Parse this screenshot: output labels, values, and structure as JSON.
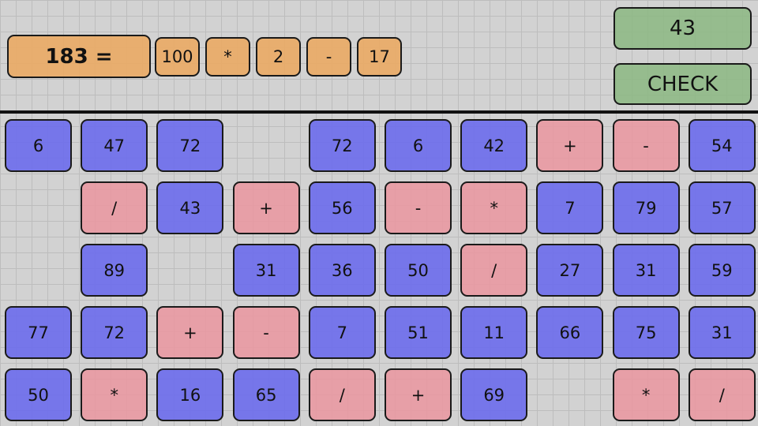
{
  "equation": {
    "target_label": "183 =",
    "tokens": [
      "100",
      "*",
      "2",
      "-",
      "17"
    ]
  },
  "result_value": "43",
  "check_label": "CHECK",
  "colors": {
    "number_tile": "#7878e6",
    "operator_tile": "#e3a0aa",
    "equation_tile": "#e6b078",
    "result_tile": "#93b98c"
  },
  "grid": [
    [
      "6",
      "47",
      "72",
      "",
      "72",
      "6",
      "42",
      "+",
      "-",
      "54"
    ],
    [
      "",
      "/",
      "43",
      "+",
      "56",
      "-",
      "*",
      "7",
      "79",
      "57"
    ],
    [
      "",
      "89",
      "",
      "31",
      "36",
      "50",
      "/",
      "27",
      "31",
      "59"
    ],
    [
      "77",
      "72",
      "+",
      "-",
      "7",
      "51",
      "11",
      "66",
      "75",
      "31"
    ],
    [
      "50",
      "*",
      "16",
      "65",
      "/",
      "+",
      "69",
      "",
      "*",
      "/"
    ]
  ]
}
